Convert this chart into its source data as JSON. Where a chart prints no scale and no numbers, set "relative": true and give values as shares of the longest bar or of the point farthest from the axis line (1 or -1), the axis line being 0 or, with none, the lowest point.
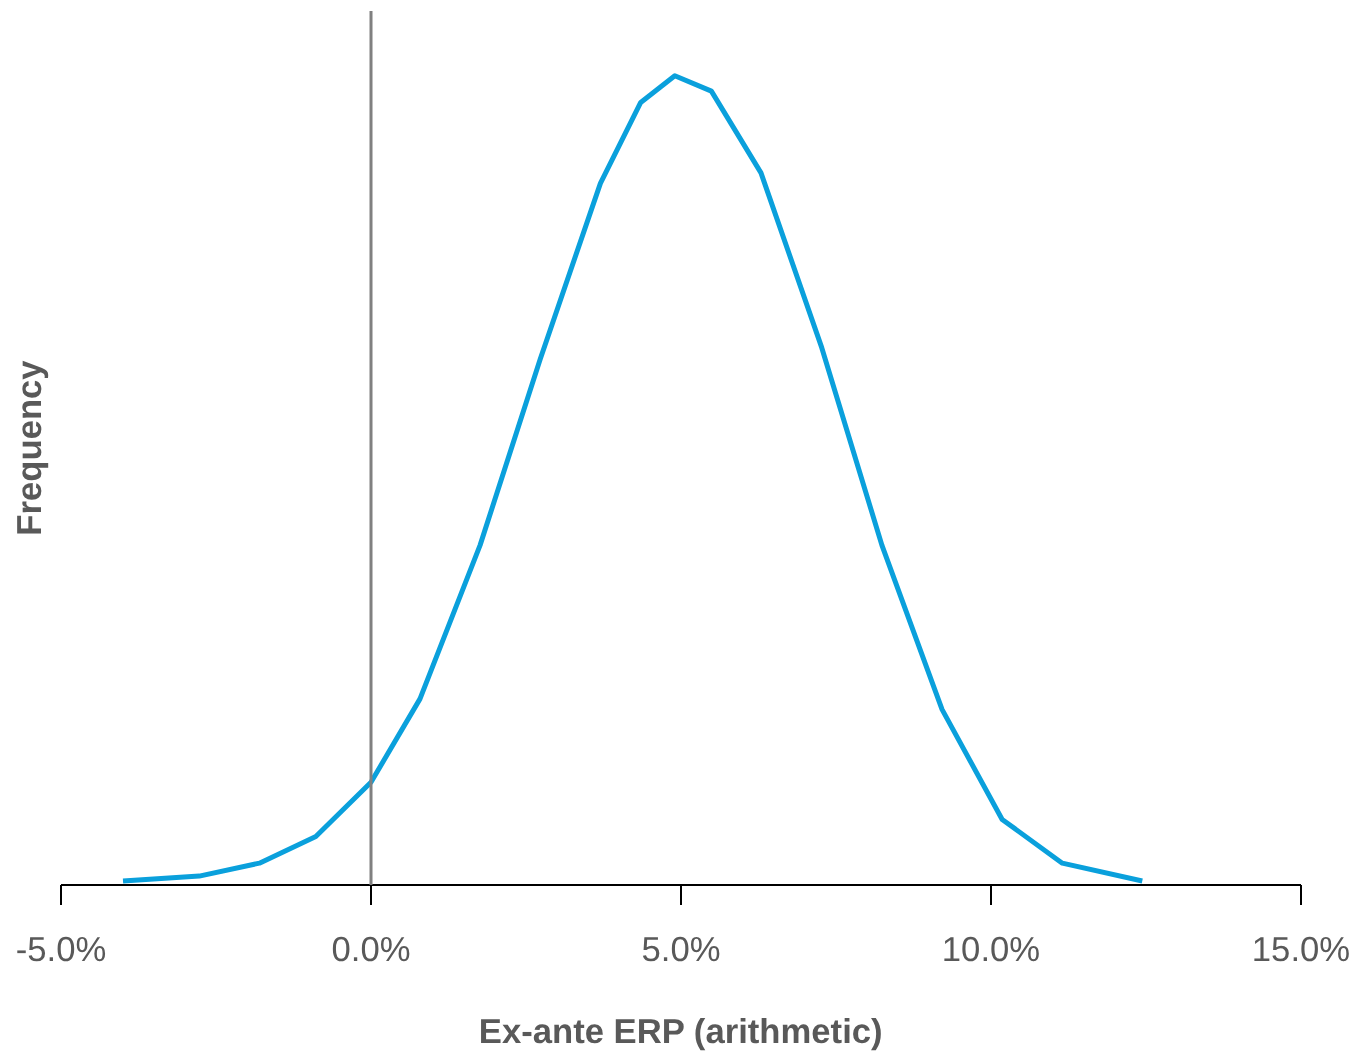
{
  "chart_data": {
    "type": "line",
    "relative": true,
    "xlabel": "Ex-ante ERP (arithmetic)",
    "ylabel": "Frequency",
    "xlim": [
      -5,
      15
    ],
    "xticks": [
      {
        "value": -5,
        "label": "-5.0%"
      },
      {
        "value": 0,
        "label": "0.0%"
      },
      {
        "value": 5,
        "label": "5.0%"
      },
      {
        "value": 10,
        "label": "10.0%"
      },
      {
        "value": 15,
        "label": "15.0%"
      }
    ],
    "grid": false,
    "ref_lines": [
      {
        "axis": "x",
        "value": 0,
        "color": "#808080"
      }
    ],
    "series": [
      {
        "color": "#0aa0dc",
        "x": [
          -4.0,
          -2.77,
          -1.8,
          -0.89,
          0.0,
          0.79,
          1.76,
          2.73,
          3.7,
          4.35,
          4.9,
          5.49,
          6.29,
          7.27,
          8.24,
          9.21,
          10.18,
          11.15,
          12.44
        ],
        "values": [
          0.005,
          0.011,
          0.027,
          0.06,
          0.127,
          0.23,
          0.42,
          0.65,
          0.867,
          0.967,
          1.0,
          0.981,
          0.88,
          0.664,
          0.42,
          0.217,
          0.081,
          0.027,
          0.005
        ]
      }
    ]
  }
}
